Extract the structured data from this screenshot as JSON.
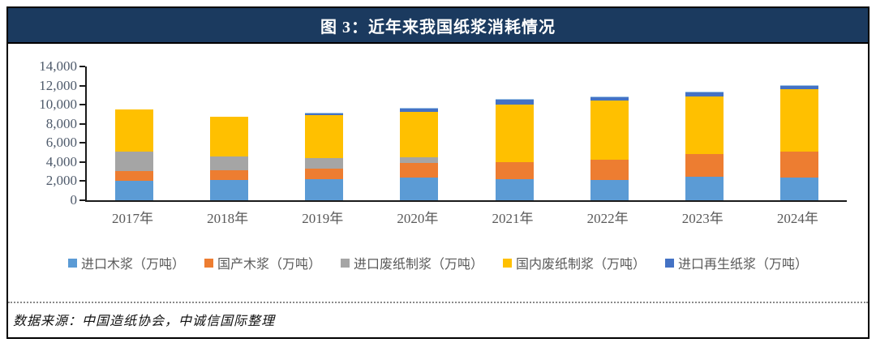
{
  "figure": {
    "title": "图 3：近年来我国纸浆消耗情况",
    "source_note": "数据来源：中国造纸协会，中诚信国际整理"
  },
  "colors": {
    "title_bar_bg": "#1B3A5F",
    "frame_border": "#000000",
    "axis_line": "#1a1a1a",
    "tick_label": "#4e5a6b",
    "category_label": "#595959",
    "legend_text": "#595959"
  },
  "chart_data": {
    "type": "bar",
    "stacked": true,
    "title": "图 3：近年来我国纸浆消耗情况",
    "categories": [
      "2017年",
      "2018年",
      "2019年",
      "2020年",
      "2021年",
      "2022年",
      "2023年",
      "2024年"
    ],
    "series": [
      {
        "name": "进口木浆（万吨）",
        "color": "#5B9BD5",
        "values": [
          2000,
          2100,
          2200,
          2400,
          2200,
          2100,
          2500,
          2400
        ]
      },
      {
        "name": "国产木浆（万吨）",
        "color": "#ED7D31",
        "values": [
          1050,
          1050,
          1150,
          1500,
          1800,
          2150,
          2300,
          2700
        ]
      },
      {
        "name": "进口废纸制浆（万吨）",
        "color": "#A5A5A5",
        "values": [
          2050,
          1450,
          1100,
          600,
          0,
          0,
          0,
          0
        ]
      },
      {
        "name": "国内废纸制浆（万吨）",
        "color": "#FFC000",
        "values": [
          4400,
          4150,
          4450,
          4750,
          6050,
          6150,
          6050,
          6500
        ]
      },
      {
        "name": "进口再生纸浆（万吨）",
        "color": "#4472C4",
        "values": [
          0,
          0,
          150,
          350,
          450,
          350,
          450,
          350
        ]
      }
    ],
    "totals": [
      9500,
      8750,
      9050,
      9600,
      10500,
      10750,
      11300,
      11950
    ],
    "ylim": [
      0,
      14000
    ],
    "ytick_step": 2000,
    "ytick_labels": [
      "0",
      "2,000",
      "4,000",
      "6,000",
      "8,000",
      "10,000",
      "12,000",
      "14,000"
    ],
    "xlabel": "",
    "ylabel": "",
    "grid": false,
    "legend_position": "bottom"
  }
}
